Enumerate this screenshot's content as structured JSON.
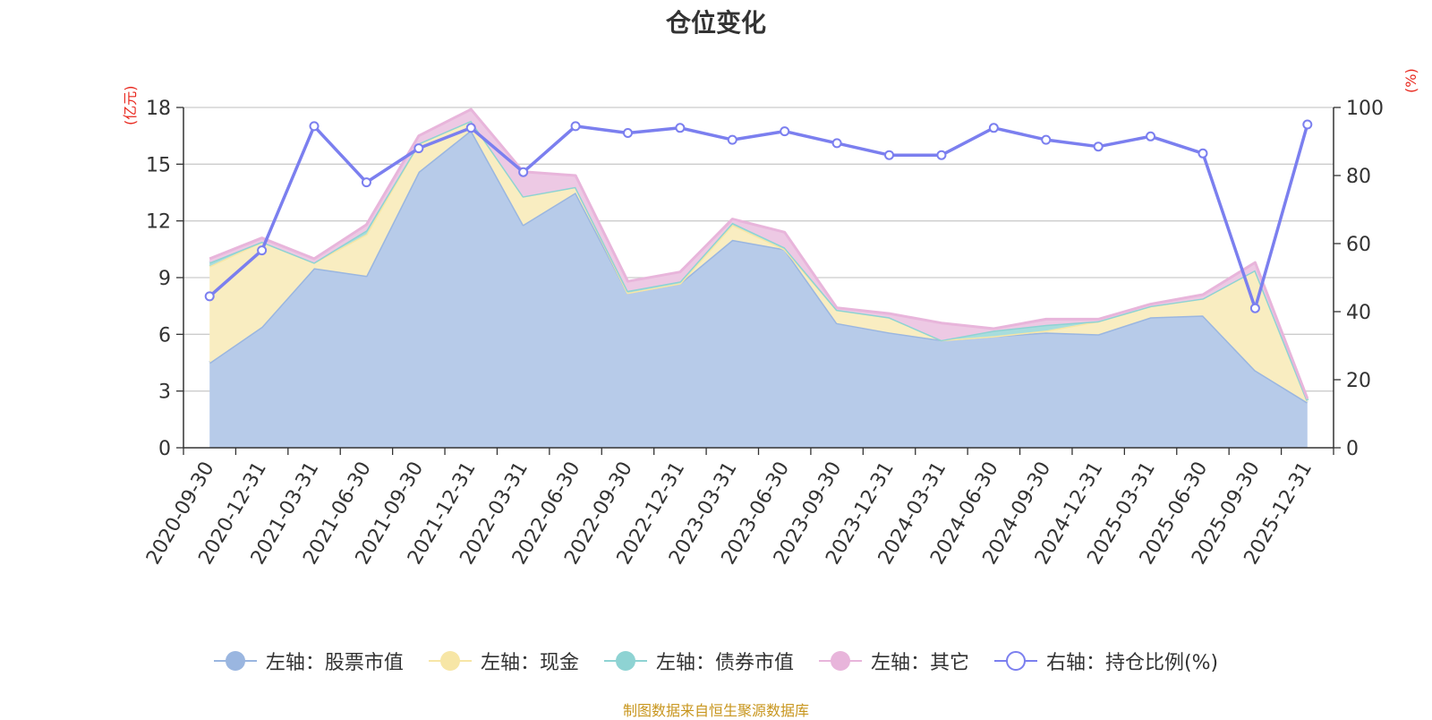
{
  "chart_data": {
    "type": "area",
    "title": "仓位变化",
    "left_axis_unit": "(亿元)",
    "right_axis_unit": "(%)",
    "categories": [
      "2020-09-30",
      "2020-12-31",
      "2021-03-31",
      "2021-06-30",
      "2021-09-30",
      "2021-12-31",
      "2022-03-31",
      "2022-06-30",
      "2022-09-30",
      "2022-12-31",
      "2023-03-31",
      "2023-06-30",
      "2023-09-30",
      "2023-12-31",
      "2024-03-31",
      "2024-06-30",
      "2024-09-30",
      "2024-12-31",
      "2025-03-31",
      "2025-06-30",
      "2025-09-30",
      "2025-12-31"
    ],
    "left_axis": {
      "min": 0,
      "max": 18,
      "ticks": [
        0,
        3,
        6,
        9,
        12,
        15,
        18
      ]
    },
    "right_axis": {
      "min": 0,
      "max": 100,
      "ticks": [
        0,
        20,
        40,
        60,
        80,
        100
      ]
    },
    "series": [
      {
        "name": "左轴：股票市值",
        "axis": "left",
        "color": "#9ab6e0",
        "fill": "#b7cbe9",
        "values": [
          4.5,
          6.4,
          9.5,
          9.1,
          14.6,
          16.8,
          11.8,
          13.5,
          8.2,
          8.7,
          11.0,
          10.5,
          6.6,
          6.1,
          5.7,
          5.9,
          6.1,
          6.0,
          6.9,
          7.0,
          4.1,
          2.4
        ]
      },
      {
        "name": "左轴：现金",
        "axis": "left",
        "color": "#f7e6a6",
        "fill": "#f9edc1",
        "values": [
          5.1,
          4.5,
          0.3,
          2.2,
          1.5,
          0.5,
          1.5,
          0.3,
          0.0,
          0.0,
          0.8,
          0.0,
          0.7,
          0.8,
          0.0,
          0.0,
          0.1,
          0.7,
          0.6,
          0.9,
          5.3,
          0.1
        ]
      },
      {
        "name": "左轴：债券市值",
        "axis": "left",
        "color": "#8ed3d3",
        "fill": "#a8dddd",
        "values": [
          0.2,
          0.0,
          0.0,
          0.2,
          0.0,
          0.0,
          0.0,
          0.0,
          0.1,
          0.1,
          0.1,
          0.1,
          0.0,
          0.0,
          0.0,
          0.3,
          0.3,
          0.0,
          0.0,
          0.0,
          0.0,
          0.0
        ]
      },
      {
        "name": "左轴：其它",
        "axis": "left",
        "color": "#e8b5db",
        "fill": "#edc9e4",
        "values": [
          0.2,
          0.2,
          0.2,
          0.3,
          0.4,
          0.6,
          1.3,
          0.6,
          0.5,
          0.5,
          0.2,
          0.8,
          0.1,
          0.2,
          0.9,
          0.1,
          0.3,
          0.1,
          0.1,
          0.2,
          0.4,
          0.1
        ]
      },
      {
        "name": "右轴：持仓比例(%)",
        "axis": "right",
        "color": "#7b7fef",
        "values": [
          44.5,
          58,
          94.5,
          78,
          88,
          94,
          81,
          94.5,
          92.5,
          94,
          90.5,
          93,
          89.5,
          86,
          86,
          94,
          90.5,
          88.5,
          91.5,
          86.5,
          41,
          95
        ]
      }
    ]
  },
  "source_note": "制图数据来自恒生聚源数据库"
}
